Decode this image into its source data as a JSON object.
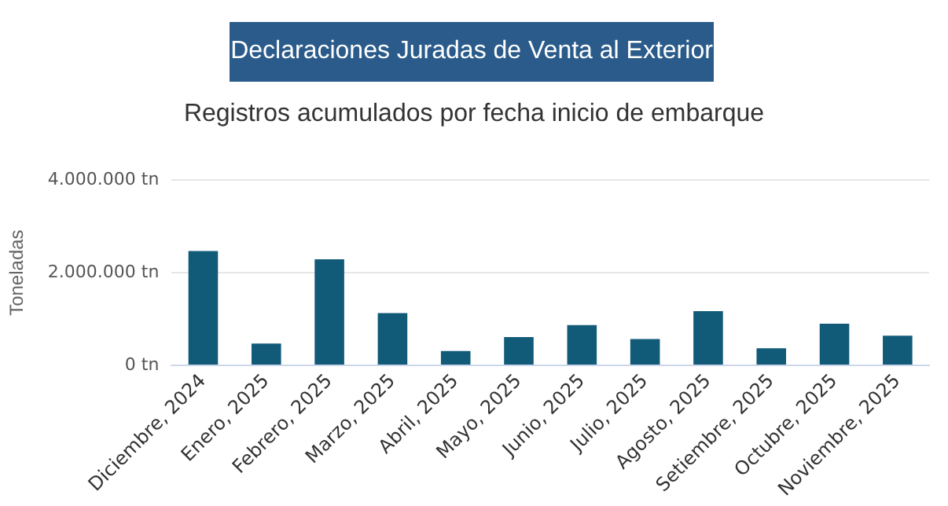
{
  "chart_data": {
    "type": "bar",
    "title": "Declaraciones Juradas de Venta al Exterior",
    "subtitle": "Registros acumulados por fecha inicio de embarque",
    "ylabel": "Toneladas",
    "categories": [
      "Diciembre, 2024",
      "Enero, 2025",
      "Febrero, 2025",
      "Marzo, 2025",
      "Abril, 2025",
      "Mayo, 2025",
      "Junio, 2025",
      "Julio, 2025",
      "Agosto, 2025",
      "Setiembre, 2025",
      "Octubre, 2025",
      "Noviembre, 2025"
    ],
    "values": [
      2470000,
      470000,
      2290000,
      1130000,
      310000,
      610000,
      870000,
      570000,
      1170000,
      370000,
      900000,
      640000
    ],
    "color": "#115a78",
    "ylim": [
      0,
      4000000
    ],
    "yticks": [
      {
        "value": 0,
        "label": "0 tn"
      },
      {
        "value": 2000000,
        "label": "2.000.000 tn"
      },
      {
        "value": 4000000,
        "label": "4.000.000 tn"
      }
    ],
    "grid": "y",
    "legend": false
  }
}
